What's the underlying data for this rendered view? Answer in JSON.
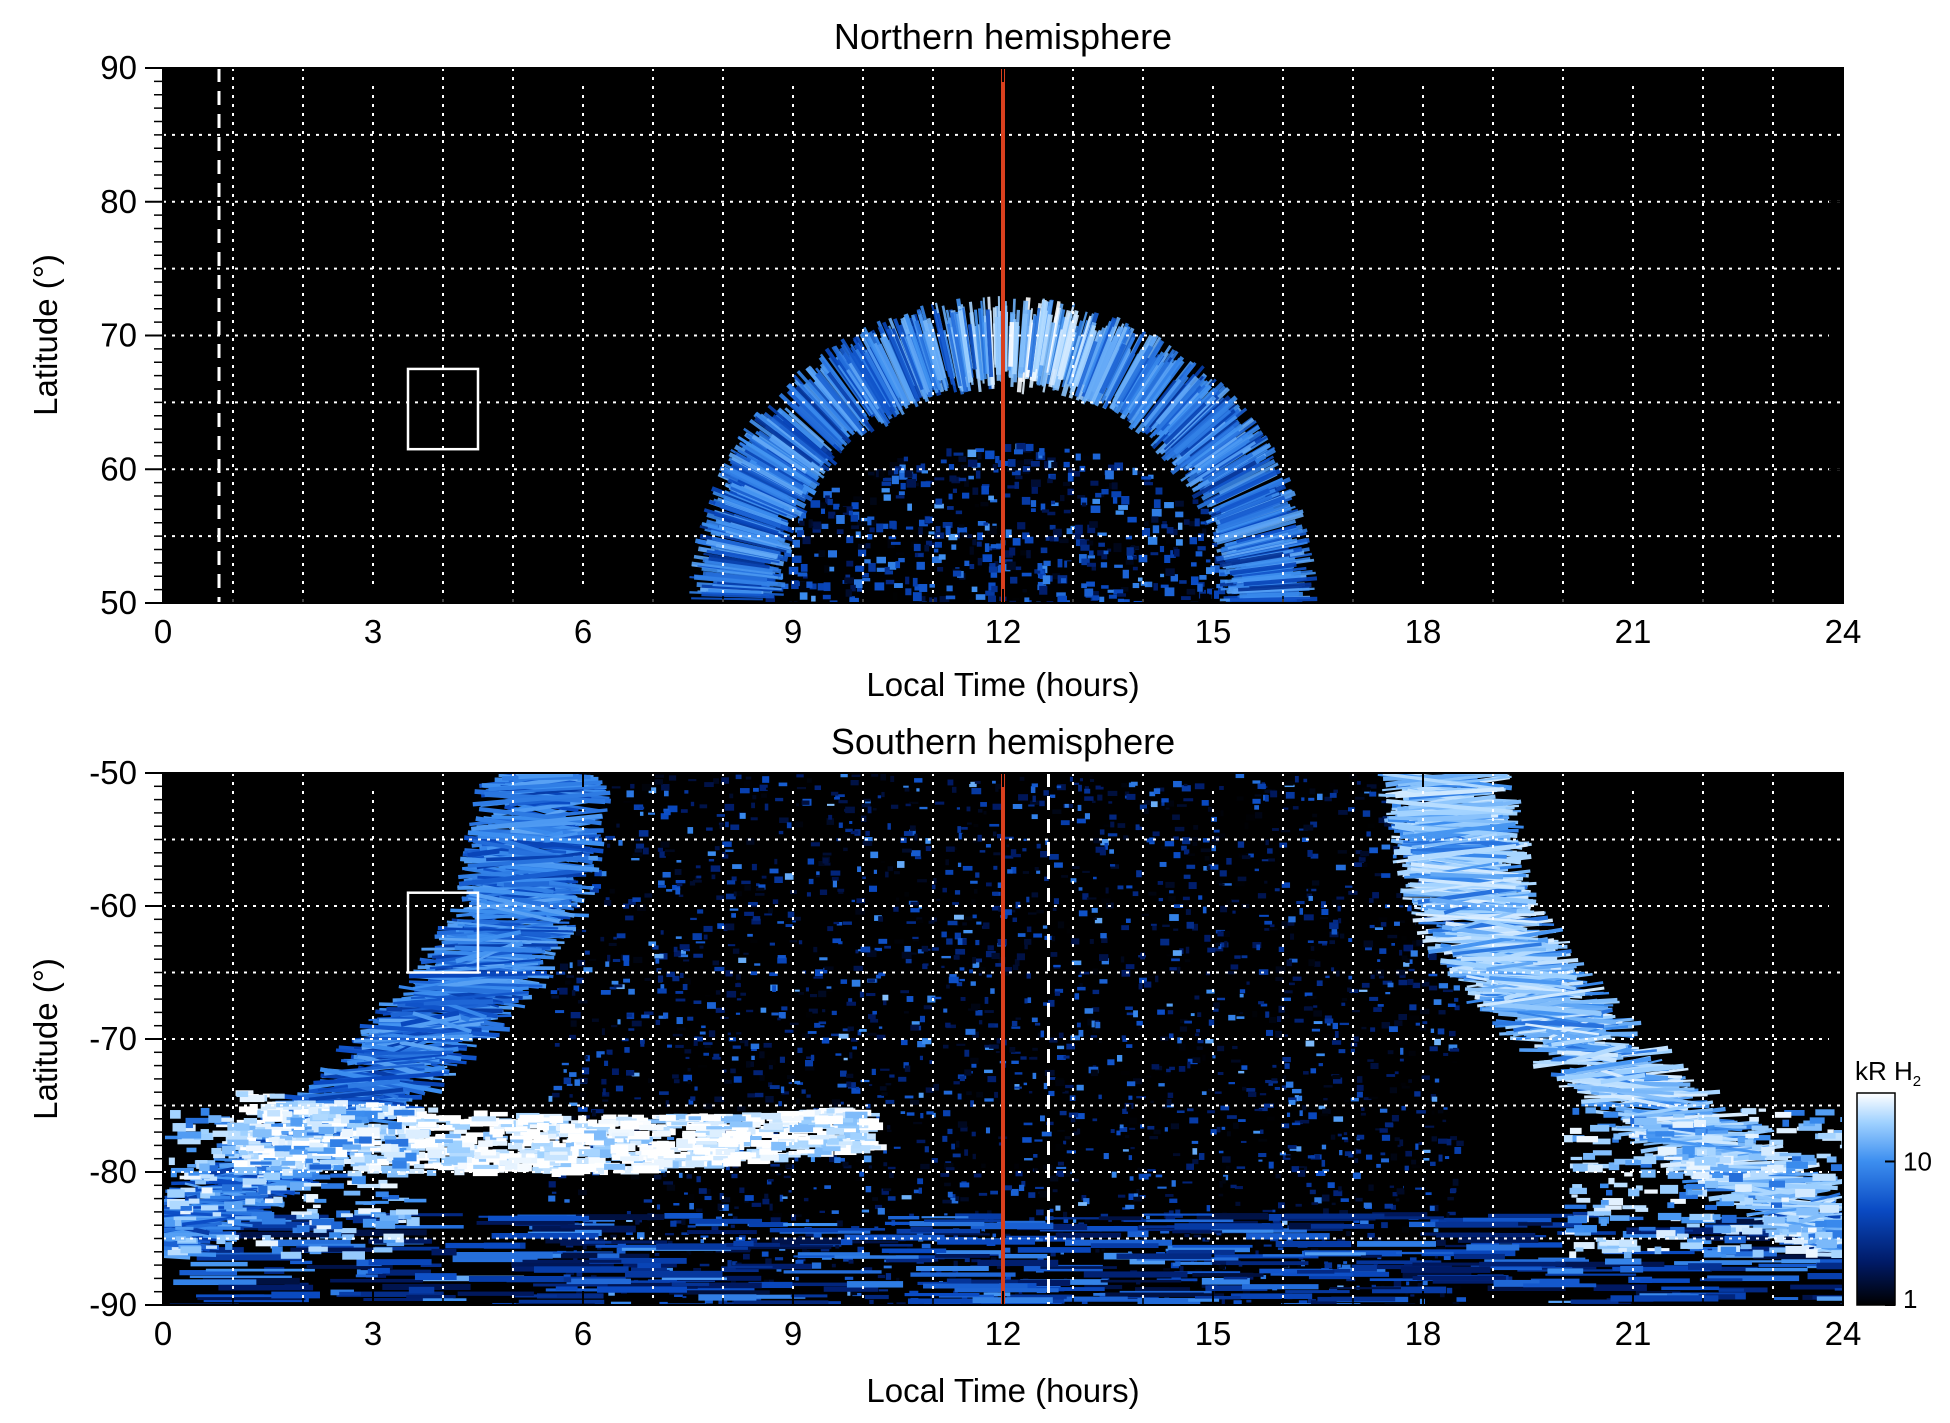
{
  "chart_data": [
    {
      "type": "heatmap",
      "title": "Northern hemisphere",
      "xlabel": "Local Time (hours)",
      "ylabel": "Latitude (°)",
      "xlim": [
        0,
        24
      ],
      "ylim": [
        50,
        90
      ],
      "xticks": [
        0,
        3,
        6,
        9,
        12,
        15,
        18,
        21,
        24
      ],
      "xtick_labels": [
        "0",
        "3",
        "6",
        "9",
        "12",
        "15",
        "18",
        "21",
        "24"
      ],
      "yticks": [
        50,
        60,
        70,
        80,
        90
      ],
      "ytick_labels": [
        "50",
        "60",
        "70",
        "80",
        "90"
      ],
      "grid": true,
      "grid_x_step_hours": 1,
      "grid_y_step_deg": 5,
      "markers": [
        {
          "kind": "vertical_line",
          "x": 12,
          "color": "#d9401e",
          "style": "solid"
        },
        {
          "kind": "vertical_line",
          "x": 0.8,
          "color": "#ffffff",
          "style": "dashed"
        },
        {
          "kind": "box",
          "x": [
            3.5,
            4.5
          ],
          "y": [
            61.5,
            67.5
          ],
          "color": "#ffffff"
        }
      ],
      "features": [
        {
          "name": "auroral oval",
          "lt_center": 12.0,
          "lt_half_width_at_50": 4.5,
          "lat_outer": 73,
          "lat_inner": 62,
          "intensity_kR": 10
        },
        {
          "name": "noon brightening",
          "lt": 12.3,
          "lat": 66,
          "intensity_kR": 30
        }
      ]
    },
    {
      "type": "heatmap",
      "title": "Southern hemisphere",
      "xlabel": "Local Time (hours)",
      "ylabel": "Latitude (°)",
      "xlim": [
        0,
        24
      ],
      "ylim": [
        -90,
        -50
      ],
      "xticks": [
        0,
        3,
        6,
        9,
        12,
        15,
        18,
        21,
        24
      ],
      "xtick_labels": [
        "0",
        "3",
        "6",
        "9",
        "12",
        "15",
        "18",
        "21",
        "24"
      ],
      "yticks": [
        -90,
        -80,
        -70,
        -60,
        -50
      ],
      "ytick_labels": [
        "-90",
        "-80",
        "-70",
        "-60",
        "-50"
      ],
      "grid": true,
      "grid_x_step_hours": 1,
      "grid_y_step_deg": 5,
      "markers": [
        {
          "kind": "vertical_line",
          "x": 12,
          "color": "#d9401e",
          "style": "solid"
        },
        {
          "kind": "vertical_line",
          "x": 12.65,
          "color": "#ffffff",
          "style": "dashed"
        },
        {
          "kind": "box",
          "x": [
            3.5,
            4.5
          ],
          "y": [
            -65,
            -59
          ],
          "color": "#ffffff"
        }
      ],
      "features": [
        {
          "name": "dawn oval arc",
          "lt_at_minus50": 5.5,
          "lt_at_minus75": 1.5,
          "intensity_kR": 10
        },
        {
          "name": "dusk oval arc",
          "lt_at_minus50": 18.3,
          "lt_at_minus75": 22.5,
          "intensity_kR": 20
        },
        {
          "name": "bright dawn band",
          "lt": [
            1,
            10
          ],
          "lat": [
            -79,
            -74
          ],
          "intensity_kR": 30
        },
        {
          "name": "polar cap patchy emission",
          "lt": [
            6,
            18
          ],
          "lat": [
            -90,
            -50
          ],
          "intensity_kR": 2
        }
      ],
      "colorbar": {
        "label": "kR H",
        "label_subscript": "2",
        "scale": "log",
        "range": [
          1,
          30
        ],
        "ticks": [
          1,
          10
        ],
        "tick_labels": [
          "1",
          "10"
        ],
        "colors": [
          "#000000",
          "#001a66",
          "#0a4bc4",
          "#3d8ff0",
          "#9fd1ff",
          "#ffffff"
        ]
      }
    }
  ]
}
